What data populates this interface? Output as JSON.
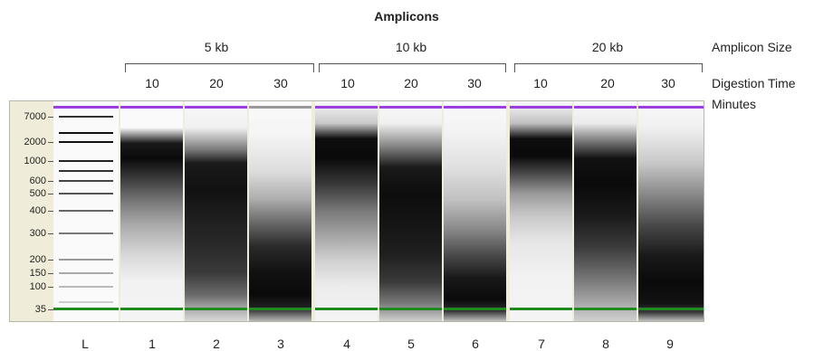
{
  "header": {
    "title": "Amplicons",
    "amplicon_size_label": "Amplicon Size",
    "digestion_time_label": "Digestion Time",
    "minutes_label": "Minutes"
  },
  "groups": [
    {
      "size": "5 kb",
      "times": [
        "10",
        "20",
        "30"
      ]
    },
    {
      "size": "10 kb",
      "times": [
        "10",
        "20",
        "30"
      ]
    },
    {
      "size": "20 kb",
      "times": [
        "10",
        "20",
        "30"
      ]
    }
  ],
  "ladder": {
    "lane_label": "L",
    "marker_labels": [
      "7000",
      "2000",
      "1000",
      "600",
      "500",
      "400",
      "300",
      "200",
      "150",
      "100",
      "35"
    ]
  },
  "lanes": [
    "1",
    "2",
    "3",
    "4",
    "5",
    "6",
    "7",
    "8",
    "9"
  ],
  "colors": {
    "upper_marker": "#9b3fe0",
    "lower_marker": "#1f8a1f",
    "gel_background": "#efedd9"
  }
}
